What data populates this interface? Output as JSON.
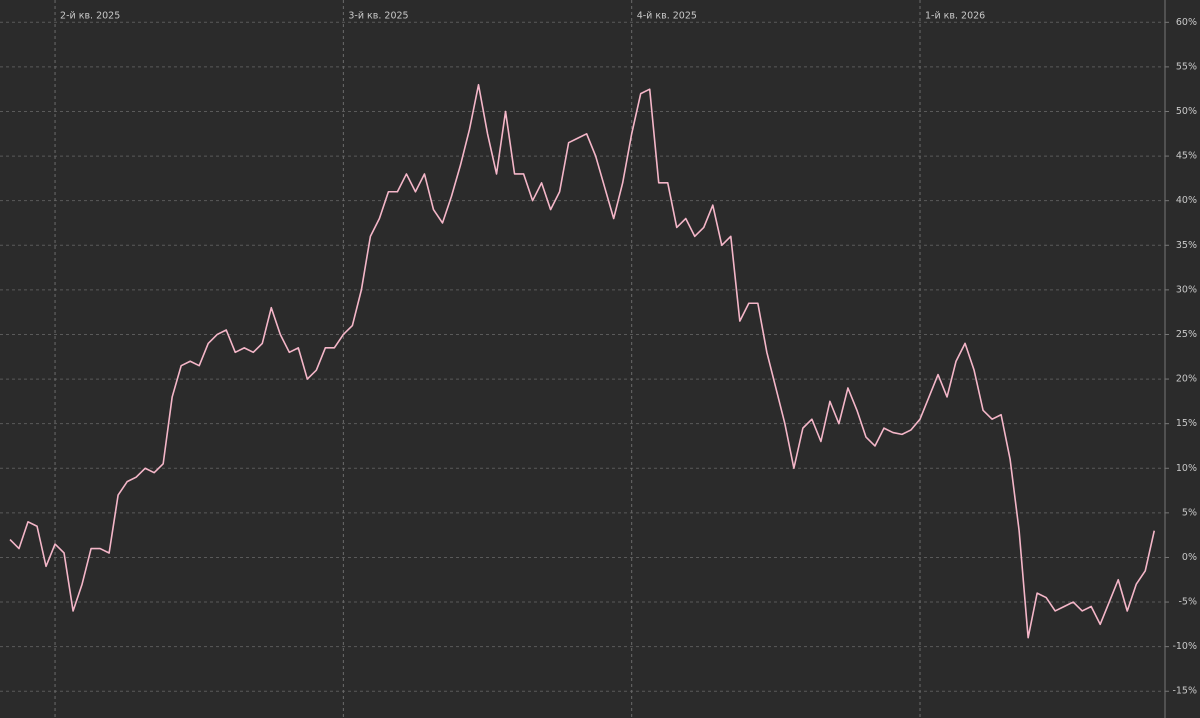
{
  "chart_data": {
    "type": "line",
    "categories": [
      null,
      null,
      null,
      null,
      null,
      "2-й кв. 2025",
      null,
      null,
      null,
      null,
      null,
      null,
      null,
      null,
      null,
      null,
      null,
      null,
      null,
      null,
      null,
      null,
      null,
      null,
      null,
      null,
      null,
      null,
      null,
      null,
      null,
      null,
      null,
      null,
      null,
      null,
      null,
      "3-й кв. 2025",
      null,
      null,
      null,
      null,
      null,
      null,
      null,
      null,
      null,
      null,
      null,
      null,
      null,
      null,
      null,
      null,
      null,
      null,
      null,
      null,
      null,
      null,
      null,
      null,
      null,
      null,
      null,
      null,
      null,
      null,
      null,
      "4-й кв. 2025",
      null,
      null,
      null,
      null,
      null,
      null,
      null,
      null,
      null,
      null,
      null,
      null,
      null,
      null,
      null,
      null,
      null,
      null,
      null,
      null,
      null,
      null,
      null,
      null,
      null,
      null,
      null,
      null,
      null,
      null,
      null,
      "1-й кв. 2026",
      null,
      null,
      null,
      null,
      null,
      null,
      null,
      null,
      null,
      null,
      null,
      null,
      null,
      null,
      null,
      null,
      null,
      null,
      null,
      null,
      null,
      null,
      null,
      null,
      null,
      null
    ],
    "series": [
      {
        "color": "#f4b6c8",
        "values": [
          2,
          1,
          4,
          3.5,
          -1,
          1.5,
          0.5,
          -6,
          -3,
          1,
          1,
          0.5,
          7,
          8.5,
          9,
          10,
          9.5,
          10.5,
          18,
          21.5,
          22,
          21.5,
          24,
          25,
          25.5,
          23,
          23.5,
          23,
          24,
          28,
          25,
          23,
          23.5,
          20,
          21,
          23.5,
          23.5,
          25,
          26,
          30,
          36,
          38,
          41,
          41,
          43,
          41,
          43,
          39,
          37.5,
          40.5,
          44,
          48,
          53,
          47.5,
          43,
          50,
          43,
          43,
          40,
          42,
          39,
          41,
          46.5,
          47,
          47.5,
          45,
          41.5,
          38,
          42,
          47.5,
          52,
          52.5,
          42,
          42,
          37,
          38,
          36,
          37,
          39.5,
          35,
          36,
          26.5,
          28.5,
          28.5,
          23,
          19,
          15,
          10,
          14.5,
          15.5,
          13,
          17.5,
          15,
          19,
          16.5,
          13.5,
          12.5,
          14.5,
          14,
          13.8,
          14.3,
          15.5,
          18,
          20.5,
          18,
          22,
          24,
          21,
          16.5,
          15.5,
          16,
          11,
          3,
          -9,
          -4,
          -4.5,
          -6,
          -5.5,
          -5,
          -6,
          -5.5,
          -7.5,
          -5,
          -2.5,
          -6,
          -3,
          -1.5,
          3
        ]
      }
    ],
    "ylim": [
      -18,
      62.5
    ],
    "yticks": [
      {
        "value": -15,
        "label": "-15%"
      },
      {
        "value": -10,
        "label": "-10%"
      },
      {
        "value": -5,
        "label": "-5%"
      },
      {
        "value": 0,
        "label": "0%"
      },
      {
        "value": 5,
        "label": "5%"
      },
      {
        "value": 10,
        "label": "10%"
      },
      {
        "value": 15,
        "label": "15%"
      },
      {
        "value": 20,
        "label": "20%"
      },
      {
        "value": 25,
        "label": "25%"
      },
      {
        "value": 30,
        "label": "30%"
      },
      {
        "value": 35,
        "label": "35%"
      },
      {
        "value": 40,
        "label": "40%"
      },
      {
        "value": 45,
        "label": "45%"
      },
      {
        "value": 50,
        "label": "50%"
      },
      {
        "value": 55,
        "label": "55%"
      },
      {
        "value": 60,
        "label": "60%"
      }
    ],
    "grid": true
  }
}
